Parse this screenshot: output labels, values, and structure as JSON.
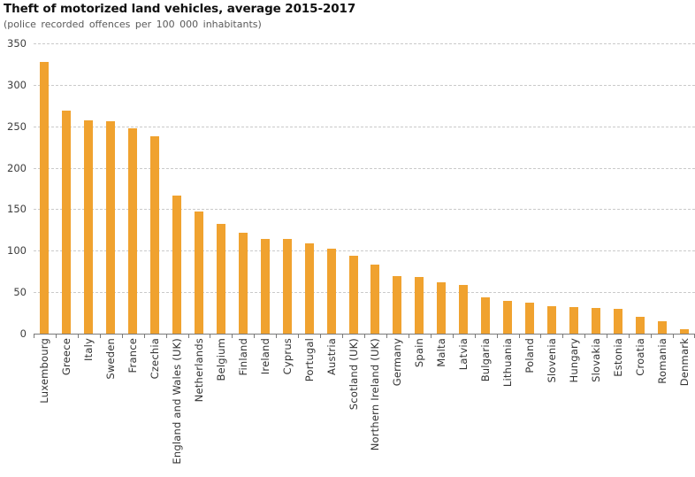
{
  "header": {
    "title": "Theft of motorized land vehicles, average 2015-2017",
    "subtitle": "(police recorded offences per 100 000 inhabitants)"
  },
  "chart_data": {
    "type": "bar",
    "title": "Theft of motorized land vehicles, average 2015-2017",
    "subtitle": "(police recorded offences per 100 000 inhabitants)",
    "xlabel": "",
    "ylabel": "",
    "categories": [
      "Luxembourg",
      "Greece",
      "Italy",
      "Sweden",
      "France",
      "Czechia",
      "England and Wales (UK)",
      "Netherlands",
      "Belgium",
      "Finland",
      "Ireland",
      "Cyprus",
      "Portugal",
      "Austria",
      "Scotland (UK)",
      "Northern Ireland (UK)",
      "Germany",
      "Spain",
      "Malta",
      "Latvia",
      "Bulgaria",
      "Lithuania",
      "Poland",
      "Slovenia",
      "Hungary",
      "Slovakia",
      "Estonia",
      "Croatia",
      "Romania",
      "Denmark"
    ],
    "values": [
      328,
      269,
      257,
      256,
      248,
      238,
      166,
      147,
      132,
      122,
      114,
      114,
      109,
      102,
      94,
      83,
      69,
      68,
      62,
      59,
      44,
      39,
      37,
      33,
      32,
      31,
      30,
      20,
      15,
      5
    ],
    "ylim": [
      0,
      350
    ],
    "yticks": [
      0,
      50,
      100,
      150,
      200,
      250,
      300,
      350
    ],
    "grid": "horizontal-dashed",
    "legend_position": "none",
    "bar_color": "#F0A22F",
    "axis_color": "#7A7A7A",
    "gridline_color": "#CACACA"
  }
}
